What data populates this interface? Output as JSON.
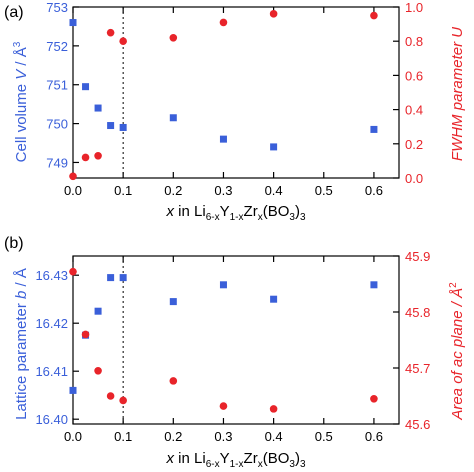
{
  "chart_data": [
    {
      "panel_label": "(a)",
      "type": "scatter",
      "xlabel_parts": {
        "x_italic": "x",
        "text_in": "in Li",
        "sub1": "6-x",
        "text_y": "Y",
        "sub2": "1-x",
        "text_zr": "Zr",
        "sub3": "x",
        "text_bo": "(BO",
        "sub4": "3",
        "text_close": ")",
        "sub5": "3"
      },
      "x_ticks": [
        "0.0",
        "0.1",
        "0.2",
        "0.3",
        "0.4",
        "0.5",
        "0.6"
      ],
      "xlim": [
        0.0,
        0.65
      ],
      "dotted_line_x": 0.1,
      "left_axis": {
        "label": "Cell volume V / Å³",
        "label_parts": {
          "t1": "Cell volume ",
          "t2": "V",
          "t3": " / Å",
          "sup": "3"
        },
        "color": "#3a5fd9",
        "ylim": [
          748.6,
          753.0
        ],
        "ticks": [
          "749",
          "750",
          "751",
          "752",
          "753"
        ]
      },
      "right_axis": {
        "label": "FWHM parameter U",
        "label_parts": {
          "t1": "FWHM parameter ",
          "t2": "U"
        },
        "color": "#e8242a",
        "ylim": [
          0.0,
          1.0
        ],
        "ticks": [
          "0.0",
          "0.2",
          "0.4",
          "0.6",
          "0.8",
          "1.0"
        ]
      },
      "series": [
        {
          "axis": "left",
          "marker": "square",
          "x": [
            0.0,
            0.025,
            0.05,
            0.075,
            0.1,
            0.2,
            0.3,
            0.4,
            0.6
          ],
          "values": [
            752.6,
            750.95,
            750.4,
            749.95,
            749.9,
            750.15,
            749.6,
            749.4,
            749.85
          ]
        },
        {
          "axis": "right",
          "marker": "circle",
          "x": [
            0.0,
            0.025,
            0.05,
            0.075,
            0.1,
            0.2,
            0.3,
            0.4,
            0.6
          ],
          "values": [
            0.01,
            0.12,
            0.13,
            0.85,
            0.8,
            0.82,
            0.91,
            0.96,
            0.95
          ]
        }
      ]
    },
    {
      "panel_label": "(b)",
      "type": "scatter",
      "xlabel_parts": {
        "x_italic": "x",
        "text_in": "in Li",
        "sub1": "6-x",
        "text_y": "Y",
        "sub2": "1-x",
        "text_zr": "Zr",
        "sub3": "x",
        "text_bo": "(BO",
        "sub4": "3",
        "text_close": ")",
        "sub5": "3"
      },
      "x_ticks": [
        "0.0",
        "0.1",
        "0.2",
        "0.3",
        "0.4",
        "0.5",
        "0.6"
      ],
      "xlim": [
        0.0,
        0.65
      ],
      "dotted_line_x": 0.1,
      "left_axis": {
        "label": "Lattice parameter b / Å",
        "label_parts": {
          "t1": "Lattice parameter ",
          "t2": "b",
          "t3": " / Å",
          "sup": ""
        },
        "color": "#3a5fd9",
        "ylim": [
          16.399,
          16.434
        ],
        "ticks": [
          "16.40",
          "16.41",
          "16.42",
          "16.43"
        ]
      },
      "right_axis": {
        "label": "Area of ac plane / Å²",
        "label_parts": {
          "t1": "Area of ",
          "t2": "ac",
          "t3": " plane / Å",
          "sup": "2"
        },
        "color": "#e8242a",
        "ylim": [
          45.6,
          45.9
        ],
        "ticks": [
          "45.6",
          "45.7",
          "45.8",
          "45.9"
        ]
      },
      "series": [
        {
          "axis": "left",
          "marker": "square",
          "x": [
            0.0,
            0.025,
            0.05,
            0.075,
            0.1,
            0.2,
            0.3,
            0.4,
            0.6
          ],
          "values": [
            16.406,
            16.4175,
            16.4225,
            16.4295,
            16.4295,
            16.4245,
            16.428,
            16.425,
            16.428
          ]
        },
        {
          "axis": "right",
          "marker": "circle",
          "x": [
            0.0,
            0.025,
            0.05,
            0.075,
            0.1,
            0.2,
            0.3,
            0.4,
            0.6
          ],
          "values": [
            45.872,
            45.76,
            45.695,
            45.65,
            45.642,
            45.677,
            45.632,
            45.627,
            45.645
          ]
        }
      ]
    }
  ]
}
